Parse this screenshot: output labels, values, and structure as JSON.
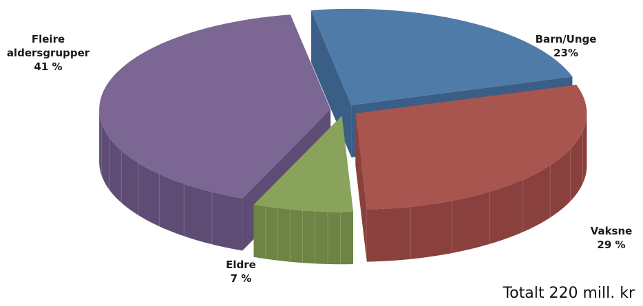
{
  "chart_data": {
    "type": "pie",
    "style": "3d-exploded",
    "slices": [
      {
        "name": "Barn/Unge",
        "value": 23,
        "value_label": "23%",
        "color": "#4F7BA8",
        "side_color": "#3A5E85"
      },
      {
        "name": "Vaksne",
        "value": 29,
        "value_label": "29 %",
        "color": "#A8544F",
        "side_color": "#8A403C"
      },
      {
        "name": "Eldre",
        "value": 7,
        "value_label": "7 %",
        "color": "#89A35A",
        "side_color": "#6D8444"
      },
      {
        "name": "Fleire aldersgrupper",
        "value": 41,
        "value_label": "41 %",
        "color": "#7B6694",
        "side_color": "#5F4C75"
      }
    ]
  },
  "total_note": "Totalt 220 mill. kr"
}
